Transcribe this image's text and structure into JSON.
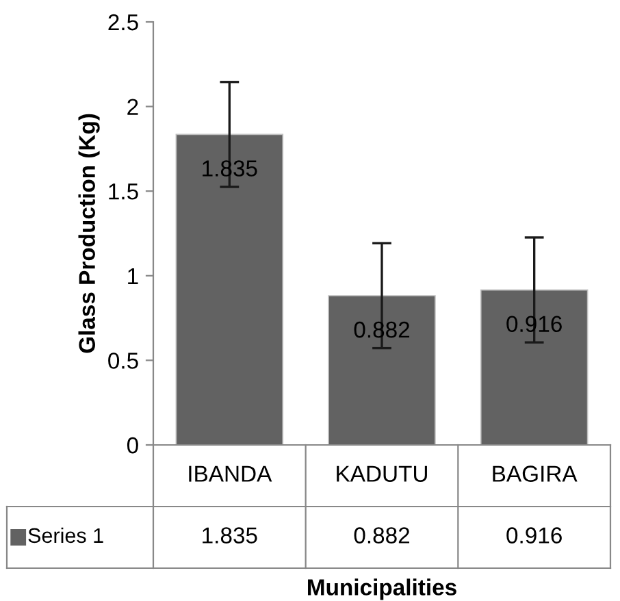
{
  "chart_data": {
    "type": "bar",
    "xlabel": "Municipalities",
    "ylabel": "Glass Production (Kg)",
    "categories": [
      "IBANDA",
      "KADUTU",
      "BAGIRA"
    ],
    "series": [
      {
        "name": "Series 1",
        "color": "#626262",
        "values": [
          1.835,
          0.882,
          0.916
        ],
        "errors": [
          0.31,
          0.31,
          0.31
        ],
        "value_labels": [
          "1.835",
          "0.882",
          "0.916"
        ]
      }
    ],
    "ylim": [
      0,
      2.5
    ],
    "yticks": [
      0,
      0.5,
      1,
      1.5,
      2,
      2.5
    ],
    "data_labels": true,
    "grid": false,
    "legend": "bottom left"
  }
}
